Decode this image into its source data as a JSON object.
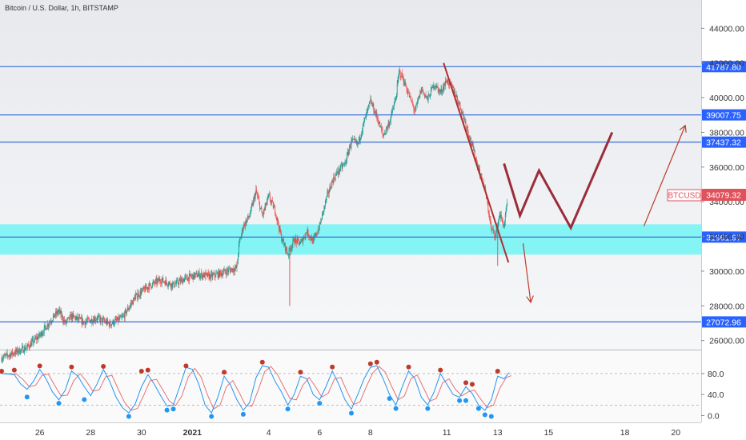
{
  "header": {
    "title": "Bitcoin / U.S. Dollar, 1h, BITSTAMP"
  },
  "symbol": {
    "label": "BTCUSD",
    "price": "34079.32",
    "color": "#e0525b"
  },
  "colors": {
    "up": "#1f9b8f",
    "down": "#ef5350",
    "level_line": "#3b6fd6",
    "zone": "#7ef3f4",
    "trend": "#b03030",
    "osc_k": "#2196f3",
    "osc_d": "#e57373",
    "dot_top": "#c0392b",
    "dot_bottom": "#2196f3"
  },
  "chart_data": {
    "type": "candlestick",
    "symbol": "BTCUSD",
    "timeframe": "1h",
    "y_ticks": [
      "44000.00",
      "42000.00",
      "40000.00",
      "38000.00",
      "36000.00",
      "34000.00",
      "32000.00",
      "30000.00",
      "28000.00",
      "26000.00"
    ],
    "x_ticks": [
      "26",
      "28",
      "30",
      "2021",
      "4",
      "6",
      "8",
      "11",
      "13",
      "15",
      "18",
      "20"
    ],
    "ylim": [
      25800,
      44800
    ],
    "levels": [
      {
        "value": 41787.8,
        "label": "41787.80"
      },
      {
        "value": 39007.75,
        "label": "39007.75"
      },
      {
        "value": 37437.32,
        "label": "37437.32"
      },
      {
        "value": 31961.97,
        "label": "31961.97"
      },
      {
        "value": 27072.96,
        "label": "27072.96"
      }
    ],
    "support_zone": [
      30950,
      32700
    ],
    "price_path": [
      [
        0,
        25000
      ],
      [
        4,
        25600
      ],
      [
        6,
        26300
      ],
      [
        8,
        27300
      ],
      [
        9,
        27700
      ],
      [
        10,
        27000
      ],
      [
        11,
        27400
      ],
      [
        13,
        27050
      ],
      [
        15,
        27300
      ],
      [
        17,
        26950
      ],
      [
        19,
        27300
      ],
      [
        21,
        28500
      ],
      [
        23,
        29100
      ],
      [
        25,
        29500
      ],
      [
        27,
        29200
      ],
      [
        29,
        29600
      ],
      [
        31,
        29800
      ],
      [
        33,
        29700
      ],
      [
        35,
        29950
      ],
      [
        37,
        30200
      ],
      [
        37.3,
        31500
      ],
      [
        38,
        32600
      ],
      [
        39,
        33200
      ],
      [
        40,
        34600
      ],
      [
        41,
        33200
      ],
      [
        42,
        34300
      ],
      [
        43,
        33500
      ],
      [
        44,
        31900
      ],
      [
        45,
        31000
      ],
      [
        46,
        31800
      ],
      [
        47,
        31600
      ],
      [
        48,
        32300
      ],
      [
        49,
        31700
      ],
      [
        50,
        32600
      ],
      [
        51,
        34100
      ],
      [
        52,
        35200
      ],
      [
        53,
        35800
      ],
      [
        54,
        36200
      ],
      [
        55,
        37500
      ],
      [
        56,
        37300
      ],
      [
        57,
        38600
      ],
      [
        58,
        39800
      ],
      [
        59,
        38900
      ],
      [
        60,
        37800
      ],
      [
        61,
        38600
      ],
      [
        62,
        40000
      ],
      [
        62.5,
        41500
      ],
      [
        63,
        41200
      ],
      [
        64,
        40200
      ],
      [
        65,
        39200
      ],
      [
        66,
        40500
      ],
      [
        67,
        39900
      ],
      [
        68,
        40800
      ],
      [
        69,
        40300
      ],
      [
        70,
        41000
      ],
      [
        71,
        40500
      ],
      [
        72,
        39600
      ],
      [
        73,
        38500
      ],
      [
        74,
        37200
      ],
      [
        75,
        35900
      ],
      [
        76,
        34700
      ],
      [
        76.5,
        33600
      ],
      [
        77,
        32400
      ],
      [
        77.7,
        32100
      ],
      [
        78.3,
        33300
      ],
      [
        79,
        32600
      ],
      [
        79.5,
        33900
      ]
    ],
    "wicks": [
      {
        "x": 45.3,
        "low": 28000,
        "high": 31000
      },
      {
        "x": 78,
        "low": 30300,
        "high": 32300
      }
    ],
    "projection_zigzag": [
      [
        79,
        36200
      ],
      [
        81.5,
        33200
      ],
      [
        84.5,
        35800
      ],
      [
        89.5,
        32500
      ],
      [
        96,
        38000
      ]
    ],
    "projection_arrow_down": [
      [
        82,
        31600
      ],
      [
        83.2,
        28200
      ]
    ],
    "projection_arrow_up": [
      [
        101,
        32600
      ],
      [
        107.5,
        38400
      ]
    ],
    "trendline": [
      [
        69.5,
        42000
      ],
      [
        79.7,
        30500
      ]
    ],
    "oscillator": {
      "type": "stochastic_rsi",
      "ticks": [
        "80.0",
        "40.0",
        "0.0"
      ],
      "ylim": [
        -10,
        115
      ],
      "k": [
        [
          0,
          80
        ],
        [
          2,
          78
        ],
        [
          3,
          60
        ],
        [
          4,
          50
        ],
        [
          5,
          65
        ],
        [
          6,
          88
        ],
        [
          7,
          70
        ],
        [
          8,
          45
        ],
        [
          9,
          30
        ],
        [
          10,
          48
        ],
        [
          11,
          85
        ],
        [
          12,
          75
        ],
        [
          13,
          55
        ],
        [
          14,
          38
        ],
        [
          15,
          60
        ],
        [
          16,
          88
        ],
        [
          17,
          65
        ],
        [
          18,
          35
        ],
        [
          19,
          15
        ],
        [
          20,
          5
        ],
        [
          21,
          22
        ],
        [
          22,
          55
        ],
        [
          23,
          78
        ],
        [
          24,
          60
        ],
        [
          25,
          38
        ],
        [
          26,
          18
        ],
        [
          27,
          20
        ],
        [
          28,
          55
        ],
        [
          29,
          92
        ],
        [
          30,
          88
        ],
        [
          31,
          60
        ],
        [
          32,
          20
        ],
        [
          33,
          5
        ],
        [
          34,
          35
        ],
        [
          35,
          75
        ],
        [
          36,
          58
        ],
        [
          37,
          30
        ],
        [
          38,
          10
        ],
        [
          39,
          25
        ],
        [
          40,
          72
        ],
        [
          41,
          95
        ],
        [
          42,
          92
        ],
        [
          43,
          65
        ],
        [
          44,
          45
        ],
        [
          45,
          20
        ],
        [
          46,
          40
        ],
        [
          47,
          75
        ],
        [
          48,
          70
        ],
        [
          49,
          40
        ],
        [
          50,
          30
        ],
        [
          51,
          55
        ],
        [
          52,
          85
        ],
        [
          53,
          60
        ],
        [
          54,
          30
        ],
        [
          55,
          12
        ],
        [
          56,
          40
        ],
        [
          57,
          70
        ],
        [
          58,
          92
        ],
        [
          59,
          95
        ],
        [
          60,
          70
        ],
        [
          61,
          40
        ],
        [
          62,
          20
        ],
        [
          63,
          55
        ],
        [
          64,
          85
        ],
        [
          65,
          70
        ],
        [
          66,
          35
        ],
        [
          67,
          20
        ],
        [
          68,
          45
        ],
        [
          69,
          80
        ],
        [
          70,
          60
        ],
        [
          71,
          40
        ],
        [
          72,
          35
        ],
        [
          73,
          55
        ],
        [
          74,
          42
        ],
        [
          75,
          20
        ],
        [
          76,
          10
        ],
        [
          77,
          30
        ],
        [
          78,
          75
        ],
        [
          79,
          70
        ],
        [
          79.8,
          82
        ]
      ],
      "tops": [
        [
          0,
          80
        ],
        [
          2,
          82
        ],
        [
          6,
          90
        ],
        [
          11,
          88
        ],
        [
          16,
          89
        ],
        [
          22,
          80
        ],
        [
          23,
          82
        ],
        [
          29,
          90
        ],
        [
          35,
          78
        ],
        [
          41,
          97
        ],
        [
          47,
          78
        ],
        [
          52,
          88
        ],
        [
          58,
          94
        ],
        [
          59,
          97
        ],
        [
          64,
          88
        ],
        [
          69,
          82
        ],
        [
          73,
          58
        ],
        [
          74,
          55
        ],
        [
          78,
          80
        ]
      ],
      "bottoms": [
        [
          4,
          40
        ],
        [
          9,
          28
        ],
        [
          13,
          35
        ],
        [
          20,
          3
        ],
        [
          26,
          15
        ],
        [
          27,
          17
        ],
        [
          33,
          3
        ],
        [
          38,
          7
        ],
        [
          45,
          17
        ],
        [
          50,
          28
        ],
        [
          55,
          9
        ],
        [
          61,
          37
        ],
        [
          62,
          18
        ],
        [
          67,
          18
        ],
        [
          72,
          33
        ],
        [
          73,
          33
        ],
        [
          75,
          18
        ],
        [
          76,
          6
        ],
        [
          77,
          3
        ]
      ]
    }
  }
}
